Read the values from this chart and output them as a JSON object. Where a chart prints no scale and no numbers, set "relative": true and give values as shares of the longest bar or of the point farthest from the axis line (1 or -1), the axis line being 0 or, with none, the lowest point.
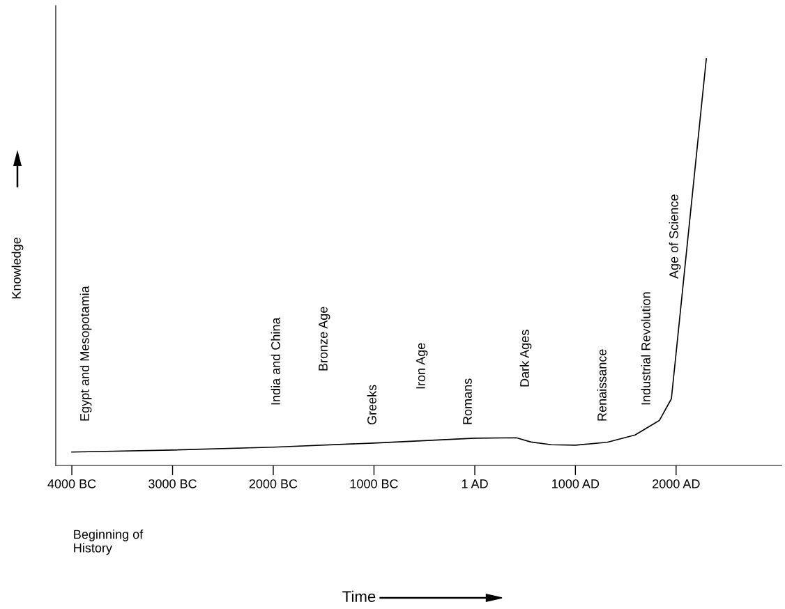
{
  "chart_data": {
    "type": "line",
    "relative": true,
    "ylabel": "Knowledge",
    "x": [
      -4000,
      -3000,
      -2000,
      -1000,
      0,
      414,
      553,
      761,
      1000,
      1315,
      1593,
      1835,
      1953,
      1994,
      2300
    ],
    "series": [
      {
        "color": "#000000",
        "values": [
          0.033,
          0.038,
          0.045,
          0.055,
          0.067,
          0.068,
          0.058,
          0.051,
          0.05,
          0.057,
          0.075,
          0.111,
          0.164,
          0.262,
          1
        ]
      }
    ],
    "xlim": [
      -4160,
      3050
    ],
    "xticks": [
      {
        "value": -4000,
        "label": "4000 BC"
      },
      {
        "value": -3000,
        "label": "3000 BC"
      },
      {
        "value": -2000,
        "label": "2000 BC"
      },
      {
        "value": -1000,
        "label": "1000 BC"
      },
      {
        "value": 1,
        "label": "1 AD"
      },
      {
        "value": 1000,
        "label": "1000 AD"
      },
      {
        "value": 2000,
        "label": "2000 AD"
      }
    ],
    "tick_labels": "x",
    "grid": false,
    "legend": false,
    "marker": "none",
    "line_style": "solid",
    "annotations": [
      "Egypt and Mesopotamia",
      "India and China",
      "Bronze Age",
      "Greeks",
      "Iron Age",
      "Romans",
      "Dark Ages",
      "Renaissance",
      "Industrial Revolution",
      "Age of Science",
      "Beginning of\nHistory",
      "Time"
    ]
  }
}
